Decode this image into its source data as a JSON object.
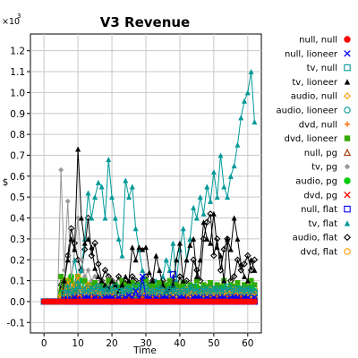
{
  "chart_data": {
    "type": "line",
    "title": "V3 Revenue",
    "xlabel": "Time",
    "ylabel": "$",
    "y_scale_base": "×10",
    "y_scale_exp": "3",
    "xlim": [
      -4,
      64
    ],
    "ylim": [
      -0.15,
      1.28
    ],
    "x_ticks": [
      0,
      10,
      20,
      30,
      40,
      50,
      60
    ],
    "y_ticks": [
      -0.1,
      0.0,
      0.1,
      0.2,
      0.3,
      0.4,
      0.5,
      0.6,
      0.7,
      0.8,
      0.9,
      1.0,
      1.1,
      1.2
    ],
    "y_tick_labels": [
      "-0.1",
      "0.0",
      "0.1",
      "0.2",
      "0.3",
      "0.4",
      "0.5",
      "0.6",
      "0.7",
      "0.8",
      "0.9",
      "1.0",
      "1.1",
      "1.2"
    ],
    "grid": true,
    "legend_placement": "right",
    "x": [
      0,
      1,
      2,
      3,
      4,
      5,
      6,
      7,
      8,
      9,
      10,
      11,
      12,
      13,
      14,
      15,
      16,
      17,
      18,
      19,
      20,
      21,
      22,
      23,
      24,
      25,
      26,
      27,
      28,
      29,
      30,
      31,
      32,
      33,
      34,
      35,
      36,
      37,
      38,
      39,
      40,
      41,
      42,
      43,
      44,
      45,
      46,
      47,
      48,
      49,
      50,
      51,
      52,
      53,
      54,
      55,
      56,
      57,
      58,
      59,
      60,
      61,
      62
    ],
    "series": [
      {
        "name": "null, null",
        "color": "#ff0000",
        "marker": "circle-filled",
        "values": [
          0,
          0,
          0,
          0,
          0,
          0,
          0,
          0,
          0,
          0,
          0,
          0,
          0,
          0,
          0,
          0,
          0,
          0,
          0,
          0,
          0,
          0,
          0,
          0,
          0,
          0,
          0,
          0,
          0,
          0,
          0,
          0,
          0,
          0,
          0,
          0,
          0,
          0,
          0,
          0,
          0,
          0,
          0,
          0,
          0,
          0,
          0,
          0,
          0,
          0,
          0,
          0,
          0,
          0,
          0,
          0,
          0,
          0,
          0,
          0,
          0,
          0,
          0
        ]
      },
      {
        "name": "null, lioneer",
        "color": "#0000ff",
        "marker": "x",
        "values": [
          0,
          0,
          0,
          0,
          0,
          0,
          0.01,
          0.01,
          0.01,
          0.02,
          0.01,
          0.01,
          0.02,
          0.02,
          0.01,
          0.02,
          0.01,
          0.01,
          0.02,
          0.02,
          0.02,
          0.01,
          0.02,
          0.01,
          0.02,
          0.03,
          0.02,
          0.05,
          0.02,
          0.12,
          0.02,
          0.02,
          0.01,
          0.02,
          0.01,
          0.02,
          0.02,
          0.01,
          0.02,
          0.01,
          0.02,
          0.02,
          0.01,
          0.01,
          0.02,
          0.02,
          0.02,
          0.01,
          0.02,
          0.01,
          0.02,
          0.01,
          0.02,
          0.02,
          0.01,
          0.02,
          0.02,
          0.02,
          0.01,
          0.02,
          0.02,
          0.01,
          0.02
        ]
      },
      {
        "name": "tv, null",
        "color": "#009999",
        "marker": "square-open",
        "values": [
          0,
          0,
          0,
          0,
          0,
          0,
          0.04,
          0.06,
          0.03,
          0.05,
          0.08,
          0.05,
          0.04,
          0.06,
          0.05,
          0.06,
          0.07,
          0.04,
          0.05,
          0.06,
          0.04,
          0.07,
          0.05,
          0.04,
          0.05,
          0.06,
          0.05,
          0.07,
          0.05,
          0.08,
          0.06,
          0.05,
          0.04,
          0.05,
          0.06,
          0.05,
          0.04,
          0.05,
          0.06,
          0.05,
          0.04,
          0.05,
          0.06,
          0.05,
          0.07,
          0.04,
          0.05,
          0.06,
          0.05,
          0.06,
          0.05,
          0.06,
          0.05,
          0.06,
          0.07,
          0.05,
          0.06,
          0.06,
          0.05,
          0.06,
          0.05,
          0.06,
          0.04
        ]
      },
      {
        "name": "tv, lioneer",
        "color": "#000000",
        "marker": "triangle-filled",
        "values": [
          0,
          0,
          0,
          0,
          0,
          0,
          0.1,
          0.2,
          0.3,
          0.25,
          0.73,
          0.4,
          0.28,
          0.3,
          0.26,
          0.16,
          0.12,
          0.1,
          0.08,
          0.06,
          0.1,
          0.08,
          0.05,
          0.08,
          0.12,
          0.1,
          0.26,
          0.2,
          0.26,
          0.25,
          0.26,
          0.14,
          0.1,
          0.22,
          0.15,
          0.08,
          0.05,
          0.06,
          0.08,
          0.2,
          0.28,
          0.1,
          0.2,
          0.27,
          0.3,
          0.12,
          0.2,
          0.38,
          0.3,
          0.28,
          0.42,
          0.26,
          0.22,
          0.1,
          0.3,
          0.25,
          0.4,
          0.3,
          0.18,
          0.12,
          0.1,
          0.2,
          0.15
        ]
      },
      {
        "name": "audio, null",
        "color": "#ff9900",
        "marker": "diamond-open",
        "values": [
          0,
          0,
          0,
          0,
          0,
          0.03,
          0.06,
          0.1,
          0.04,
          0.08,
          0.12,
          0.06,
          0.05,
          0.08,
          0.04,
          0.06,
          0.05,
          0.04,
          0.03,
          0.05,
          0.04,
          0.06,
          0.03,
          0.04,
          0.05,
          0.04,
          0.03,
          0.05,
          0.04,
          0.06,
          0.03,
          0.04,
          0.05,
          0.03,
          0.04,
          0.06,
          0.03,
          0.05,
          0.04,
          0.03,
          0.05,
          0.04,
          0.06,
          0.03,
          0.05,
          0.04,
          0.03,
          0.05,
          0.04,
          0.06,
          0.03,
          0.05,
          0.04,
          0.03,
          0.05,
          0.04,
          0.06,
          0.05,
          0.04,
          0.05,
          0.04,
          0.03,
          0.04
        ]
      },
      {
        "name": "audio, lioneer",
        "color": "#009999",
        "marker": "circle-open",
        "values": [
          0,
          0,
          0,
          0,
          0,
          0,
          0.05,
          0.08,
          0.04,
          0.06,
          0.1,
          0.05,
          0.07,
          0.04,
          0.06,
          0.05,
          0.04,
          0.06,
          0.05,
          0.04,
          0.06,
          0.05,
          0.03,
          0.05,
          0.06,
          0.04,
          0.05,
          0.03,
          0.05,
          0.04,
          0.06,
          0.05,
          0.04,
          0.05,
          0.03,
          0.05,
          0.04,
          0.06,
          0.04,
          0.05,
          0.03,
          0.05,
          0.04,
          0.06,
          0.05,
          0.04,
          0.05,
          0.03,
          0.05,
          0.04,
          0.06,
          0.05,
          0.04,
          0.05,
          0.03,
          0.05,
          0.04,
          0.06,
          0.05,
          0.04,
          0.05,
          0.04,
          0.05
        ]
      },
      {
        "name": "dvd, null",
        "color": "#ff6600",
        "marker": "plus",
        "values": [
          0,
          0,
          0,
          0,
          0,
          0.02,
          0.04,
          0.03,
          0.05,
          0.04,
          0.06,
          0.03,
          0.05,
          0.04,
          0.03,
          0.05,
          0.04,
          0.03,
          0.05,
          0.04,
          0.03,
          0.04,
          0.05,
          0.03,
          0.04,
          0.05,
          0.03,
          0.04,
          0.05,
          0.03,
          0.04,
          0.05,
          0.03,
          0.04,
          0.05,
          0.03,
          0.04,
          0.05,
          0.03,
          0.04,
          0.05,
          0.03,
          0.04,
          0.05,
          0.03,
          0.04,
          0.05,
          0.03,
          0.04,
          0.05,
          0.03,
          0.04,
          0.05,
          0.03,
          0.04,
          0.05,
          0.03,
          0.04,
          0.05,
          0.03,
          0.04,
          0.05,
          0.03
        ]
      },
      {
        "name": "dvd, lioneer",
        "color": "#33aa00",
        "marker": "square-filled",
        "values": [
          0,
          0,
          0,
          0,
          0,
          0.12,
          0.08,
          0.06,
          0.1,
          0.08,
          0.12,
          0.06,
          0.1,
          0.08,
          0.07,
          0.09,
          0.06,
          0.08,
          0.07,
          0.1,
          0.06,
          0.08,
          0.07,
          0.1,
          0.08,
          0.06,
          0.09,
          0.07,
          0.08,
          0.06,
          0.1,
          0.07,
          0.08,
          0.06,
          0.09,
          0.07,
          0.08,
          0.1,
          0.06,
          0.08,
          0.07,
          0.09,
          0.06,
          0.08,
          0.07,
          0.1,
          0.06,
          0.08,
          0.07,
          0.09,
          0.06,
          0.08,
          0.07,
          0.1,
          0.06,
          0.08,
          0.07,
          0.09,
          0.06,
          0.08,
          0.07,
          0.1,
          0.08
        ]
      },
      {
        "name": "null, pg",
        "color": "#aa3300",
        "marker": "triangle-open",
        "values": [
          0,
          0,
          0,
          0,
          0,
          0,
          0.02,
          0.03,
          0.02,
          0.03,
          0.04,
          0.02,
          0.03,
          0.02,
          0.03,
          0.02,
          0.03,
          0.02,
          0.03,
          0.02,
          0.03,
          0.02,
          0.03,
          0.02,
          0.03,
          0.02,
          0.03,
          0.02,
          0.03,
          0.02,
          0.03,
          0.02,
          0.03,
          0.02,
          0.03,
          0.02,
          0.03,
          0.02,
          0.03,
          0.02,
          0.03,
          0.02,
          0.03,
          0.02,
          0.03,
          0.02,
          0.03,
          0.02,
          0.03,
          0.02,
          0.03,
          0.02,
          0.03,
          0.02,
          0.03,
          0.02,
          0.03,
          0.02,
          0.03,
          0.02,
          0.03,
          0.02,
          0.03
        ]
      },
      {
        "name": "tv, pg",
        "color": "#999999",
        "marker": "diamond-filled",
        "values": [
          0,
          0,
          0,
          0,
          0,
          0.63,
          0.15,
          0.48,
          0.1,
          0.25,
          0.4,
          0.2,
          0.12,
          0.15,
          0.1,
          0.12,
          0.08,
          0.1,
          0.06,
          0.08,
          0.1,
          0.06,
          0.05,
          0.07,
          0.05,
          0.06,
          0.04,
          0.05,
          0.06,
          0.04,
          0.05,
          0.06,
          0.04,
          0.05,
          0.04,
          0.06,
          0.04,
          0.05,
          0.04,
          0.06,
          0.04,
          0.05,
          0.04,
          0.06,
          0.04,
          0.05,
          0.04,
          0.06,
          0.04,
          0.05,
          0.04,
          0.06,
          0.04,
          0.05,
          0.04,
          0.06,
          0.04,
          0.05,
          0.04,
          0.06,
          0.04,
          0.05,
          0.04
        ]
      },
      {
        "name": "audio, pg",
        "color": "#00cc00",
        "marker": "circle-filled",
        "values": [
          0,
          0,
          0,
          0,
          0,
          0.04,
          0.06,
          0.1,
          0.12,
          0.05,
          0.08,
          0.1,
          0.06,
          0.05,
          0.08,
          0.06,
          0.05,
          0.07,
          0.05,
          0.06,
          0.05,
          0.07,
          0.05,
          0.06,
          0.05,
          0.07,
          0.05,
          0.06,
          0.05,
          0.07,
          0.05,
          0.06,
          0.05,
          0.07,
          0.05,
          0.06,
          0.05,
          0.07,
          0.05,
          0.06,
          0.05,
          0.07,
          0.05,
          0.06,
          0.05,
          0.07,
          0.05,
          0.06,
          0.05,
          0.07,
          0.05,
          0.06,
          0.05,
          0.07,
          0.05,
          0.06,
          0.05,
          0.07,
          0.05,
          0.06,
          0.05,
          0.07,
          0.05
        ]
      },
      {
        "name": "dvd, pg",
        "color": "#ff0000",
        "marker": "x",
        "values": [
          0,
          0,
          0,
          0,
          0,
          0.01,
          0.02,
          0.01,
          0.02,
          0.01,
          0.02,
          0.01,
          0.02,
          0.01,
          0.02,
          0.01,
          0.02,
          0.01,
          0.02,
          0.01,
          0.02,
          0.01,
          0.02,
          0.01,
          0.02,
          0.01,
          0.02,
          0.01,
          0.02,
          0.01,
          0.02,
          0.01,
          0.02,
          0.01,
          0.02,
          0.01,
          0.02,
          0.01,
          0.02,
          0.01,
          0.02,
          0.01,
          0.02,
          0.01,
          0.02,
          0.01,
          0.02,
          0.01,
          0.02,
          0.01,
          0.02,
          0.01,
          0.02,
          0.01,
          0.02,
          0.01,
          0.02,
          0.01,
          0.02,
          0.01,
          0.02,
          0.01,
          0.02
        ]
      },
      {
        "name": "null, flat",
        "color": "#0000ff",
        "marker": "square-open",
        "values": [
          0,
          0,
          0,
          0,
          0,
          0,
          0,
          0,
          0,
          0,
          0,
          0,
          0,
          0,
          0,
          0,
          0,
          0,
          0,
          0,
          0,
          0,
          0,
          0,
          0,
          0,
          0,
          0,
          0,
          0,
          0,
          0,
          0,
          0,
          0,
          0,
          0,
          0,
          0.13,
          0,
          0,
          0,
          0,
          0,
          0,
          0,
          0,
          0,
          0,
          0,
          0,
          0,
          0,
          0,
          0,
          0,
          0,
          0,
          0,
          0,
          0,
          0,
          0
        ]
      },
      {
        "name": "tv, flat",
        "color": "#009999",
        "marker": "triangle-filled",
        "values": [
          0,
          0,
          0,
          0,
          0,
          0.05,
          0.1,
          0.08,
          0.12,
          0.2,
          0.1,
          0.15,
          0.3,
          0.52,
          0.4,
          0.5,
          0.57,
          0.55,
          0.4,
          0.68,
          0.5,
          0.4,
          0.3,
          0.22,
          0.58,
          0.5,
          0.55,
          0.35,
          0.25,
          0.15,
          0.1,
          0.08,
          0.06,
          0.1,
          0.08,
          0.12,
          0.2,
          0.15,
          0.28,
          0.1,
          0.25,
          0.35,
          0.2,
          0.3,
          0.45,
          0.4,
          0.5,
          0.42,
          0.55,
          0.48,
          0.62,
          0.5,
          0.7,
          0.55,
          0.5,
          0.6,
          0.65,
          0.75,
          0.88,
          0.96,
          1.0,
          1.1,
          0.86
        ]
      },
      {
        "name": "audio, flat",
        "color": "#000000",
        "marker": "diamond-open",
        "values": [
          0,
          0,
          0,
          0,
          0,
          0.08,
          0.1,
          0.22,
          0.35,
          0.28,
          0.2,
          0.15,
          0.25,
          0.4,
          0.22,
          0.28,
          0.18,
          0.1,
          0.15,
          0.12,
          0.1,
          0.08,
          0.12,
          0.06,
          0.1,
          0.08,
          0.12,
          0.1,
          0.08,
          0.1,
          0.12,
          0.08,
          0.1,
          0.06,
          0.08,
          0.1,
          0.06,
          0.08,
          0.1,
          0.06,
          0.12,
          0.08,
          0.1,
          0.06,
          0.2,
          0.15,
          0.1,
          0.3,
          0.38,
          0.42,
          0.22,
          0.3,
          0.15,
          0.25,
          0.3,
          0.1,
          0.12,
          0.2,
          0.15,
          0.18,
          0.22,
          0.15,
          0.2
        ]
      },
      {
        "name": "dvd, flat",
        "color": "#ff9900",
        "marker": "circle-open",
        "values": [
          0,
          0,
          0,
          0,
          0,
          0.05,
          0.1,
          0.06,
          0.08,
          0.05,
          0.1,
          0.06,
          0.05,
          0.08,
          0.06,
          0.05,
          0.07,
          0.05,
          0.06,
          0.05,
          0.07,
          0.05,
          0.06,
          0.05,
          0.07,
          0.05,
          0.06,
          0.05,
          0.07,
          0.05,
          0.06,
          0.05,
          0.07,
          0.05,
          0.06,
          0.05,
          0.07,
          0.05,
          0.06,
          0.05,
          0.07,
          0.05,
          0.06,
          0.05,
          0.07,
          0.05,
          0.06,
          0.05,
          0.07,
          0.05,
          0.06,
          0.05,
          0.07,
          0.05,
          0.06,
          0.05,
          0.07,
          0.05,
          0.06,
          0.05,
          0.07,
          0.05,
          0.06
        ]
      }
    ]
  }
}
